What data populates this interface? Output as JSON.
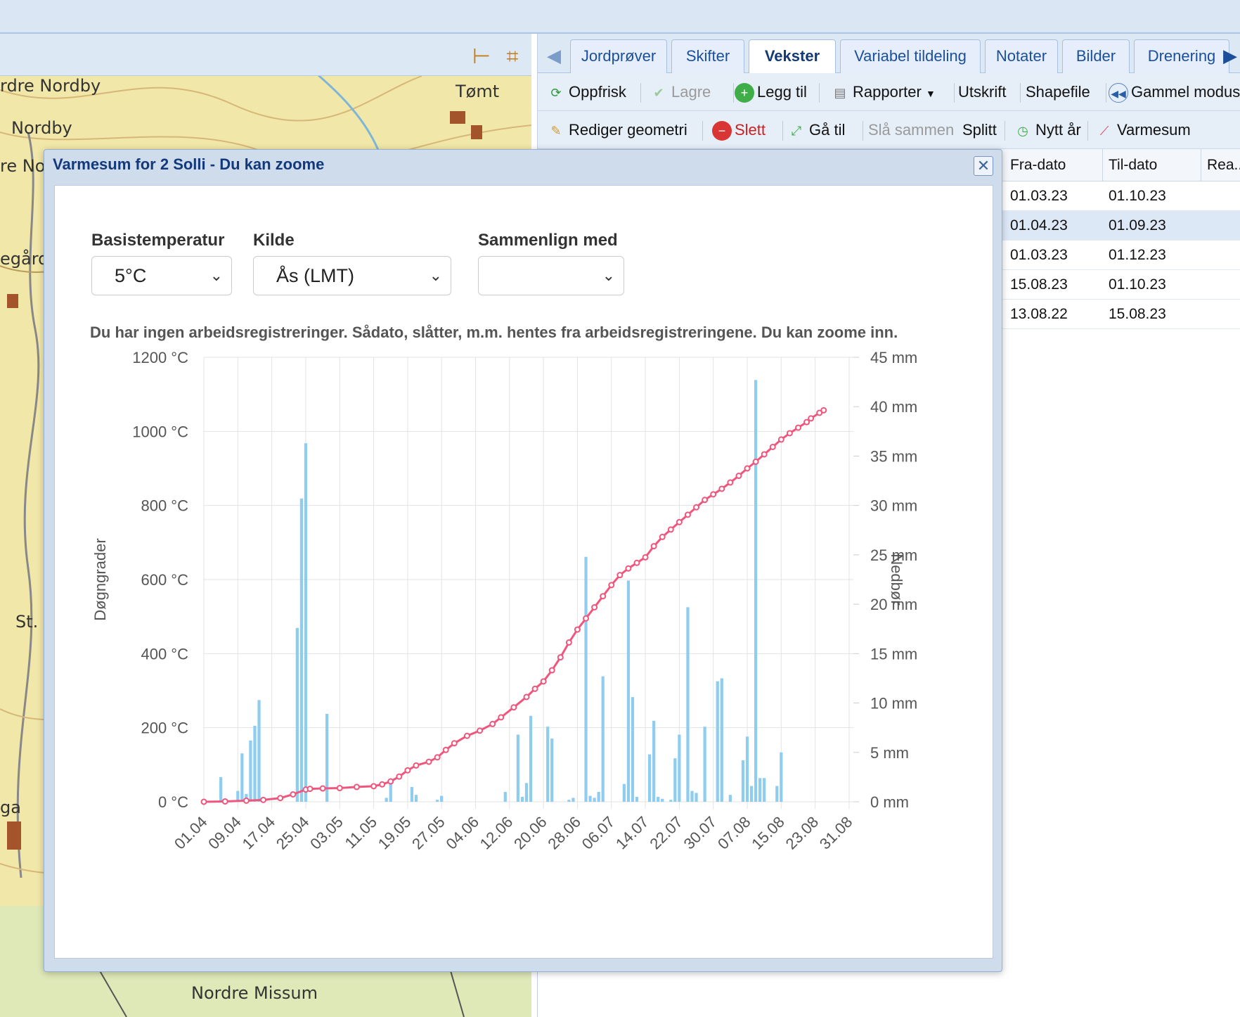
{
  "map": {
    "places": [
      "rdre Nordby",
      "Nordby",
      "Tømt",
      "re Noi",
      "egård",
      "St.",
      "ga",
      "Nordre Missum"
    ]
  },
  "right_panel": {
    "tabs": [
      "Jordprøver",
      "Skifter",
      "Vekster",
      "Variabel tildeling",
      "Notater",
      "Bilder",
      "Drenering"
    ],
    "active_tab": "Vekster",
    "toolbar1": {
      "refresh": "Oppfrisk",
      "save": "Lagre",
      "add": "Legg til",
      "reports": "Rapporter",
      "print": "Utskrift",
      "shapefile": "Shapefile",
      "old_mode": "Gammel modus"
    },
    "toolbar2": {
      "edit_geometry": "Rediger geometri",
      "delete": "Slett",
      "goto": "Gå til",
      "merge": "Slå sammen",
      "split": "Splitt",
      "new_year": "Nytt år",
      "heat_sum": "Varmesum"
    },
    "grid": {
      "columns": [
        "Fra-dato",
        "Til-dato",
        "Rea..."
      ],
      "rows": [
        [
          "01.03.23",
          "01.10.23"
        ],
        [
          "01.04.23",
          "01.09.23"
        ],
        [
          "01.03.23",
          "01.12.23"
        ],
        [
          "15.08.23",
          "01.10.23"
        ],
        [
          "13.08.22",
          "15.08.23"
        ]
      ],
      "selected_row": 1
    }
  },
  "dialog": {
    "title": "Varmesum for 2 Solli - Du kan zoome",
    "base_temp_label": "Basistemperatur",
    "base_temp_value": "5°C",
    "source_label": "Kilde",
    "source_value": "Ås (LMT)",
    "compare_label": "Sammenlign med",
    "compare_value": "",
    "info": "Du har ingen arbeidsregistreringer. Sådato, slåtter, m.m. hentes fra arbeidsregistreringene. Du kan zoome inn."
  },
  "colors": {
    "line": "#f0567c",
    "bar": "#8ecdf0",
    "dialog_title": "#14397a"
  },
  "chart_data": {
    "type": "bar+line",
    "ylabel_left": "Døgngrader",
    "ylabel_right": "Nedbør",
    "left_ticks": [
      "0 °C",
      "200 °C",
      "400 °C",
      "600 °C",
      "800 °C",
      "1000 °C",
      "1200 °C"
    ],
    "right_ticks": [
      "0 mm",
      "5 mm",
      "10 mm",
      "15 mm",
      "20 mm",
      "25 mm",
      "30 mm",
      "35 mm",
      "40 mm",
      "45 mm"
    ],
    "ylim_left": [
      0,
      1200
    ],
    "ylim_right": [
      0,
      45
    ],
    "x_ticks": [
      "01.04",
      "09.04",
      "17.04",
      "25.04",
      "03.05",
      "11.05",
      "19.05",
      "27.05",
      "04.06",
      "12.06",
      "20.06",
      "28.06",
      "06.07",
      "14.07",
      "22.07",
      "30.07",
      "07.08",
      "15.08",
      "23.08",
      "31.08"
    ],
    "x_days": [
      0,
      8,
      16,
      24,
      32,
      40,
      48,
      56,
      64,
      72,
      80,
      88,
      96,
      104,
      112,
      120,
      128,
      136,
      144,
      152
    ],
    "x_range": [
      0,
      153
    ],
    "series": [
      {
        "name": "Døgngrader",
        "kind": "line",
        "points": [
          [
            0,
            0
          ],
          [
            5,
            1
          ],
          [
            10,
            3
          ],
          [
            14,
            5
          ],
          [
            18,
            10
          ],
          [
            21,
            20
          ],
          [
            24,
            33
          ],
          [
            25,
            35
          ],
          [
            28,
            36
          ],
          [
            32,
            37
          ],
          [
            36,
            40
          ],
          [
            40,
            42
          ],
          [
            42,
            47
          ],
          [
            44,
            55
          ],
          [
            46,
            68
          ],
          [
            48,
            85
          ],
          [
            50,
            98
          ],
          [
            53,
            108
          ],
          [
            55,
            120
          ],
          [
            57,
            140
          ],
          [
            59,
            158
          ],
          [
            62,
            178
          ],
          [
            65,
            192
          ],
          [
            68,
            210
          ],
          [
            70,
            228
          ],
          [
            73,
            255
          ],
          [
            76,
            283
          ],
          [
            78,
            305
          ],
          [
            80,
            325
          ],
          [
            82,
            355
          ],
          [
            84,
            390
          ],
          [
            86,
            430
          ],
          [
            88,
            465
          ],
          [
            90,
            495
          ],
          [
            92,
            525
          ],
          [
            94,
            555
          ],
          [
            96,
            585
          ],
          [
            98,
            612
          ],
          [
            100,
            630
          ],
          [
            102,
            645
          ],
          [
            104,
            660
          ],
          [
            106,
            690
          ],
          [
            108,
            715
          ],
          [
            110,
            735
          ],
          [
            112,
            755
          ],
          [
            114,
            775
          ],
          [
            116,
            795
          ],
          [
            118,
            815
          ],
          [
            120,
            830
          ],
          [
            122,
            845
          ],
          [
            124,
            862
          ],
          [
            126,
            880
          ],
          [
            128,
            900
          ],
          [
            130,
            918
          ],
          [
            132,
            938
          ],
          [
            134,
            958
          ],
          [
            136,
            978
          ],
          [
            138,
            995
          ],
          [
            140,
            1010
          ],
          [
            142,
            1025
          ],
          [
            143,
            1035
          ],
          [
            145,
            1050
          ],
          [
            146,
            1057
          ]
        ]
      },
      {
        "name": "Nedbør",
        "kind": "bar",
        "points": [
          [
            4,
            2.5
          ],
          [
            5,
            0.3
          ],
          [
            8,
            1.1
          ],
          [
            9,
            4.9
          ],
          [
            10,
            0.8
          ],
          [
            11,
            6.2
          ],
          [
            12,
            7.7
          ],
          [
            13,
            10.3
          ],
          [
            22,
            17.6
          ],
          [
            23,
            30.7
          ],
          [
            24,
            36.3
          ],
          [
            29,
            8.9
          ],
          [
            43,
            0.4
          ],
          [
            44,
            2.1
          ],
          [
            49,
            1.5
          ],
          [
            50,
            0.7
          ],
          [
            55,
            0.2
          ],
          [
            56,
            0.6
          ],
          [
            71,
            1.0
          ],
          [
            74,
            6.8
          ],
          [
            75,
            0.5
          ],
          [
            76,
            1.9
          ],
          [
            77,
            8.7
          ],
          [
            81,
            7.6
          ],
          [
            82,
            6.4
          ],
          [
            86,
            0.2
          ],
          [
            87,
            0.4
          ],
          [
            90,
            24.8
          ],
          [
            91,
            0.6
          ],
          [
            92,
            0.4
          ],
          [
            93,
            1.0
          ],
          [
            94,
            12.7
          ],
          [
            99,
            1.8
          ],
          [
            100,
            22.4
          ],
          [
            101,
            10.6
          ],
          [
            102,
            0.5
          ],
          [
            105,
            4.8
          ],
          [
            106,
            8.2
          ],
          [
            107,
            0.5
          ],
          [
            108,
            0.3
          ],
          [
            110,
            0.2
          ],
          [
            111,
            4.4
          ],
          [
            112,
            6.8
          ],
          [
            114,
            19.7
          ],
          [
            115,
            1.1
          ],
          [
            116,
            0.9
          ],
          [
            118,
            7.6
          ],
          [
            121,
            12.2
          ],
          [
            122,
            12.5
          ],
          [
            124,
            0.7
          ],
          [
            127,
            4.2
          ],
          [
            128,
            6.6
          ],
          [
            129,
            1.6
          ],
          [
            130,
            42.7
          ],
          [
            131,
            2.4
          ],
          [
            132,
            2.4
          ],
          [
            135,
            1.6
          ],
          [
            136,
            5.0
          ]
        ]
      }
    ],
    "grid": true
  }
}
